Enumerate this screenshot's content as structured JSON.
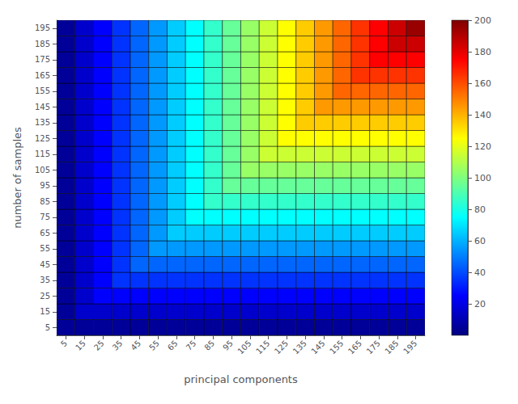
{
  "chart_data": {
    "type": "heatmap",
    "xlabel": "principal components",
    "ylabel": "number of samples",
    "x": [
      5,
      15,
      25,
      35,
      45,
      55,
      65,
      75,
      85,
      95,
      105,
      115,
      125,
      135,
      145,
      155,
      165,
      175,
      185,
      195
    ],
    "y": [
      5,
      15,
      25,
      35,
      45,
      55,
      65,
      75,
      85,
      95,
      105,
      115,
      125,
      135,
      145,
      155,
      165,
      175,
      185,
      195
    ],
    "values": [
      [
        5,
        5,
        5,
        5,
        5,
        5,
        5,
        5,
        5,
        5,
        5,
        5,
        5,
        5,
        5,
        5,
        5,
        5,
        5,
        5
      ],
      [
        5,
        15,
        15,
        15,
        15,
        15,
        15,
        15,
        15,
        15,
        15,
        15,
        15,
        15,
        15,
        15,
        15,
        15,
        15,
        15
      ],
      [
        5,
        15,
        25,
        25,
        25,
        25,
        25,
        25,
        25,
        25,
        25,
        25,
        25,
        25,
        25,
        25,
        25,
        25,
        25,
        25
      ],
      [
        5,
        15,
        25,
        35,
        35,
        35,
        35,
        35,
        35,
        35,
        35,
        35,
        35,
        35,
        35,
        35,
        35,
        35,
        35,
        35
      ],
      [
        5,
        15,
        25,
        35,
        45,
        45,
        45,
        45,
        45,
        45,
        45,
        45,
        45,
        45,
        45,
        45,
        45,
        45,
        45,
        45
      ],
      [
        5,
        15,
        25,
        35,
        45,
        55,
        55,
        55,
        55,
        55,
        55,
        55,
        55,
        55,
        55,
        55,
        55,
        55,
        55,
        55
      ],
      [
        5,
        15,
        25,
        35,
        45,
        55,
        65,
        65,
        65,
        65,
        65,
        65,
        65,
        65,
        65,
        65,
        65,
        65,
        65,
        65
      ],
      [
        5,
        15,
        25,
        35,
        45,
        55,
        65,
        75,
        75,
        75,
        75,
        75,
        75,
        75,
        75,
        75,
        75,
        75,
        75,
        75
      ],
      [
        5,
        15,
        25,
        35,
        45,
        55,
        65,
        75,
        85,
        85,
        85,
        85,
        85,
        85,
        85,
        85,
        85,
        85,
        85,
        85
      ],
      [
        5,
        15,
        25,
        35,
        45,
        55,
        65,
        75,
        85,
        95,
        95,
        95,
        95,
        95,
        95,
        95,
        95,
        95,
        95,
        95
      ],
      [
        5,
        15,
        25,
        35,
        45,
        55,
        65,
        75,
        85,
        95,
        105,
        105,
        105,
        105,
        105,
        105,
        105,
        105,
        105,
        105
      ],
      [
        5,
        15,
        25,
        35,
        45,
        55,
        65,
        75,
        85,
        95,
        105,
        115,
        115,
        115,
        115,
        115,
        115,
        115,
        115,
        115
      ],
      [
        5,
        15,
        25,
        35,
        45,
        55,
        65,
        75,
        85,
        95,
        105,
        115,
        125,
        125,
        125,
        125,
        125,
        125,
        125,
        125
      ],
      [
        5,
        15,
        25,
        35,
        45,
        55,
        65,
        75,
        85,
        95,
        105,
        115,
        125,
        135,
        135,
        135,
        135,
        135,
        135,
        135
      ],
      [
        5,
        15,
        25,
        35,
        45,
        55,
        65,
        75,
        85,
        95,
        105,
        115,
        125,
        135,
        145,
        145,
        145,
        145,
        145,
        145
      ],
      [
        5,
        15,
        25,
        35,
        45,
        55,
        65,
        75,
        85,
        95,
        105,
        115,
        125,
        135,
        145,
        155,
        155,
        155,
        155,
        155
      ],
      [
        5,
        15,
        25,
        35,
        45,
        55,
        65,
        75,
        85,
        95,
        105,
        115,
        125,
        135,
        145,
        155,
        165,
        165,
        165,
        165
      ],
      [
        5,
        15,
        25,
        35,
        45,
        55,
        65,
        75,
        85,
        95,
        105,
        115,
        125,
        135,
        145,
        155,
        165,
        175,
        175,
        175
      ],
      [
        5,
        15,
        25,
        35,
        45,
        55,
        65,
        75,
        85,
        95,
        105,
        115,
        125,
        135,
        145,
        155,
        165,
        175,
        185,
        185
      ],
      [
        5,
        15,
        25,
        35,
        45,
        55,
        65,
        75,
        85,
        95,
        105,
        115,
        125,
        135,
        145,
        155,
        165,
        175,
        185,
        195
      ]
    ],
    "xlim": [
      0,
      200
    ],
    "ylim": [
      0,
      200
    ],
    "xticks": [
      5,
      15,
      25,
      35,
      45,
      55,
      65,
      75,
      85,
      95,
      105,
      115,
      125,
      135,
      145,
      155,
      165,
      175,
      185,
      195
    ],
    "yticks": [
      5,
      15,
      25,
      35,
      45,
      55,
      65,
      75,
      85,
      95,
      105,
      115,
      125,
      135,
      145,
      155,
      165,
      175,
      185,
      195
    ],
    "colorbar_range": [
      0,
      200
    ],
    "colorbar_ticks": [
      20,
      40,
      60,
      80,
      100,
      120,
      140,
      160,
      180,
      200
    ],
    "grid": false
  }
}
